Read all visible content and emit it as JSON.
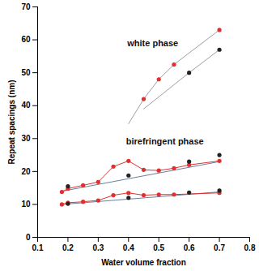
{
  "chart_data": {
    "type": "scatter",
    "xlabel": "Water volume fraction",
    "ylabel": "Repeat spacings (nm)",
    "xlim": [
      0.1,
      0.8
    ],
    "xticks": [
      0.1,
      0.2,
      0.3,
      0.4,
      0.5,
      0.6,
      0.7,
      0.8
    ],
    "ylim": [
      0,
      70
    ],
    "yticks": [
      0,
      10,
      20,
      30,
      40,
      50,
      60,
      70
    ],
    "grid": false,
    "annotations": [
      {
        "text": "white phase",
        "x": 0.48,
        "y": 59
      },
      {
        "text": "birefringent phase",
        "x": 0.52,
        "y": 29
      }
    ],
    "series": [
      {
        "color": "#9aa0a8",
        "marker": "none",
        "line_style": "solid",
        "x": [
          0.4,
          0.45,
          0.5,
          0.55,
          0.7
        ],
        "values": [
          34.5,
          42,
          48,
          52.5,
          63
        ]
      },
      {
        "color": "#9aa0a8",
        "marker": "none",
        "line_style": "solid",
        "x": [
          0.45,
          0.6,
          0.7
        ],
        "values": [
          39,
          50,
          57
        ]
      },
      {
        "color": "#6a7fa0",
        "marker": "none",
        "line_style": "solid",
        "x": [
          0.18,
          0.7
        ],
        "values": [
          14,
          23
        ]
      },
      {
        "color": "#6a7fa0",
        "marker": "none",
        "line_style": "solid",
        "x": [
          0.18,
          0.7
        ],
        "values": [
          10,
          13.8
        ]
      },
      {
        "color": "#e03030",
        "marker": "circle",
        "line_style": "solid",
        "x": [
          0.18,
          0.2,
          0.25,
          0.3,
          0.35,
          0.4,
          0.45,
          0.5,
          0.55,
          0.6,
          0.7
        ],
        "values": [
          13.8,
          14.8,
          15.8,
          16.8,
          21.5,
          23.2,
          20.5,
          20.3,
          21,
          22,
          23.2
        ]
      },
      {
        "color": "#e03030",
        "marker": "circle",
        "line_style": "solid",
        "x": [
          0.18,
          0.2,
          0.25,
          0.3,
          0.35,
          0.4,
          0.45,
          0.5,
          0.55,
          0.7
        ],
        "values": [
          10,
          10.5,
          10.8,
          11.2,
          12.8,
          13.5,
          12.8,
          13,
          13,
          13.5
        ]
      },
      {
        "color": "#e03030",
        "marker": "circle",
        "line_style": "none",
        "x": [
          0.45,
          0.5,
          0.55,
          0.7
        ],
        "values": [
          42,
          48,
          52.5,
          63
        ]
      },
      {
        "color": "#222222",
        "marker": "circle",
        "line_style": "none",
        "x": [
          0.2,
          0.4,
          0.6,
          0.7
        ],
        "values": [
          15.5,
          18.8,
          23,
          25
        ]
      },
      {
        "color": "#222222",
        "marker": "circle",
        "line_style": "none",
        "x": [
          0.2,
          0.4,
          0.6,
          0.7
        ],
        "values": [
          10.2,
          12,
          13.6,
          14.2
        ]
      },
      {
        "color": "#222222",
        "marker": "circle",
        "line_style": "none",
        "x": [
          0.6,
          0.7
        ],
        "values": [
          50,
          57
        ]
      }
    ]
  }
}
